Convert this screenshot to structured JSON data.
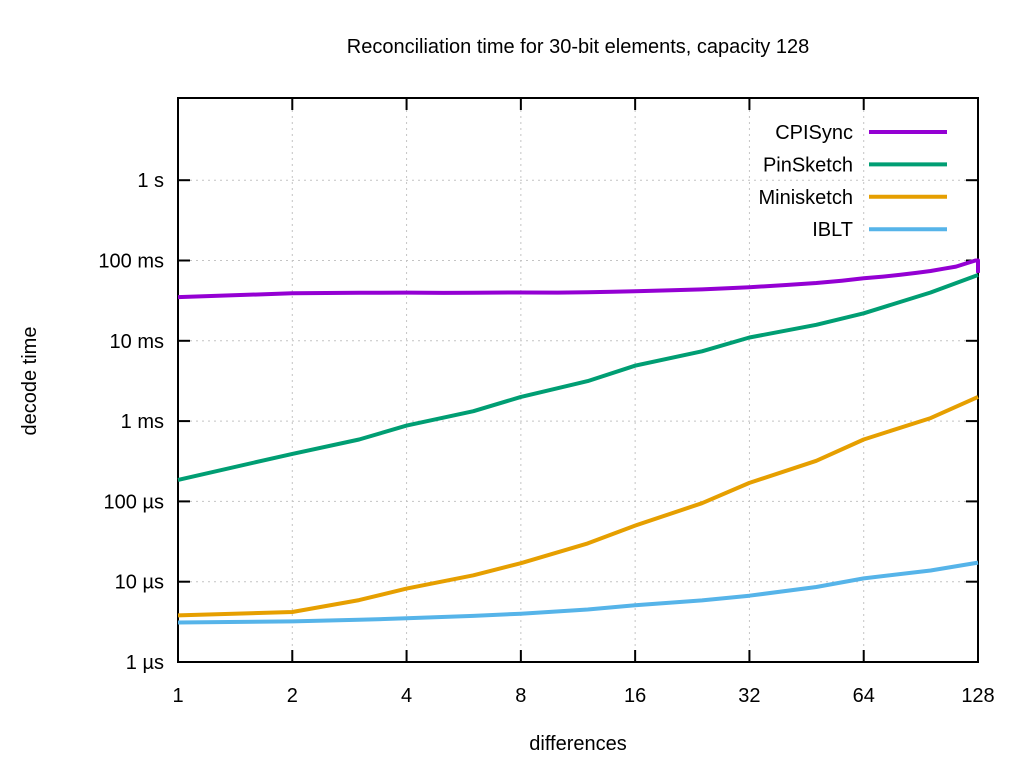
{
  "chart_data": {
    "type": "line",
    "title": "Reconciliation time for 30-bit elements, capacity 128",
    "xlabel": "differences",
    "ylabel": "decode time",
    "x_scale": "log2",
    "y_scale": "log10",
    "grid": true,
    "legend_position": "top-right-inside",
    "x_range": [
      1,
      128
    ],
    "y_range_us": [
      1,
      11000000
    ],
    "x_ticks": [
      1,
      2,
      4,
      8,
      16,
      32,
      64,
      128
    ],
    "y_ticks": [
      {
        "us": 1,
        "label": "1 µs"
      },
      {
        "us": 10,
        "label": "10 µs"
      },
      {
        "us": 100,
        "label": "100 µs"
      },
      {
        "us": 1000,
        "label": "1 ms"
      },
      {
        "us": 10000,
        "label": "10 ms"
      },
      {
        "us": 100000,
        "label": "100 ms"
      },
      {
        "us": 1000000,
        "label": "1 s"
      }
    ],
    "series": [
      {
        "name": "IBLT",
        "color": "#56b4e9",
        "points_us": [
          [
            1,
            3.1
          ],
          [
            2,
            3.2
          ],
          [
            3,
            3.35
          ],
          [
            4,
            3.5
          ],
          [
            6,
            3.75
          ],
          [
            8,
            4.0
          ],
          [
            12,
            4.5
          ],
          [
            16,
            5.1
          ],
          [
            24,
            5.85
          ],
          [
            32,
            6.7
          ],
          [
            48,
            8.6
          ],
          [
            64,
            11.0
          ],
          [
            96,
            13.8
          ],
          [
            128,
            17.3
          ]
        ]
      },
      {
        "name": "Minisketch",
        "color": "#e69f00",
        "points_us": [
          [
            1,
            3.8
          ],
          [
            2,
            4.2
          ],
          [
            3,
            5.9
          ],
          [
            4,
            8.2
          ],
          [
            6,
            12
          ],
          [
            8,
            17
          ],
          [
            12,
            30
          ],
          [
            16,
            50
          ],
          [
            24,
            95
          ],
          [
            32,
            170
          ],
          [
            48,
            320
          ],
          [
            64,
            590
          ],
          [
            96,
            1090
          ],
          [
            128,
            2000
          ]
        ]
      },
      {
        "name": "PinSketch",
        "color": "#009e73",
        "points_us": [
          [
            1,
            185
          ],
          [
            2,
            390
          ],
          [
            3,
            590
          ],
          [
            4,
            880
          ],
          [
            6,
            1330
          ],
          [
            8,
            2000
          ],
          [
            12,
            3150
          ],
          [
            16,
            4900
          ],
          [
            24,
            7400
          ],
          [
            32,
            11000
          ],
          [
            48,
            15800
          ],
          [
            64,
            22000
          ],
          [
            96,
            40000
          ],
          [
            128,
            66000
          ]
        ]
      },
      {
        "name": "CPISync",
        "color": "#9400d3",
        "points_us": [
          [
            1,
            35000
          ],
          [
            2,
            39000
          ],
          [
            3,
            39600
          ],
          [
            4,
            39800
          ],
          [
            5,
            39500
          ],
          [
            6,
            39700
          ],
          [
            8,
            40000
          ],
          [
            10,
            39800
          ],
          [
            12,
            40300
          ],
          [
            14,
            40800
          ],
          [
            16,
            41500
          ],
          [
            20,
            42500
          ],
          [
            24,
            43600
          ],
          [
            28,
            45000
          ],
          [
            32,
            46500
          ],
          [
            40,
            49500
          ],
          [
            48,
            52500
          ],
          [
            56,
            56000
          ],
          [
            64,
            60000
          ],
          [
            72,
            63000
          ],
          [
            80,
            66500
          ],
          [
            88,
            70000
          ],
          [
            96,
            74000
          ],
          [
            104,
            79000
          ],
          [
            112,
            84000
          ],
          [
            120,
            93000
          ],
          [
            126,
            100000
          ],
          [
            128,
            100000
          ],
          [
            128,
            70000
          ]
        ]
      }
    ],
    "legend_order": [
      "CPISync",
      "PinSketch",
      "Minisketch",
      "IBLT"
    ]
  }
}
